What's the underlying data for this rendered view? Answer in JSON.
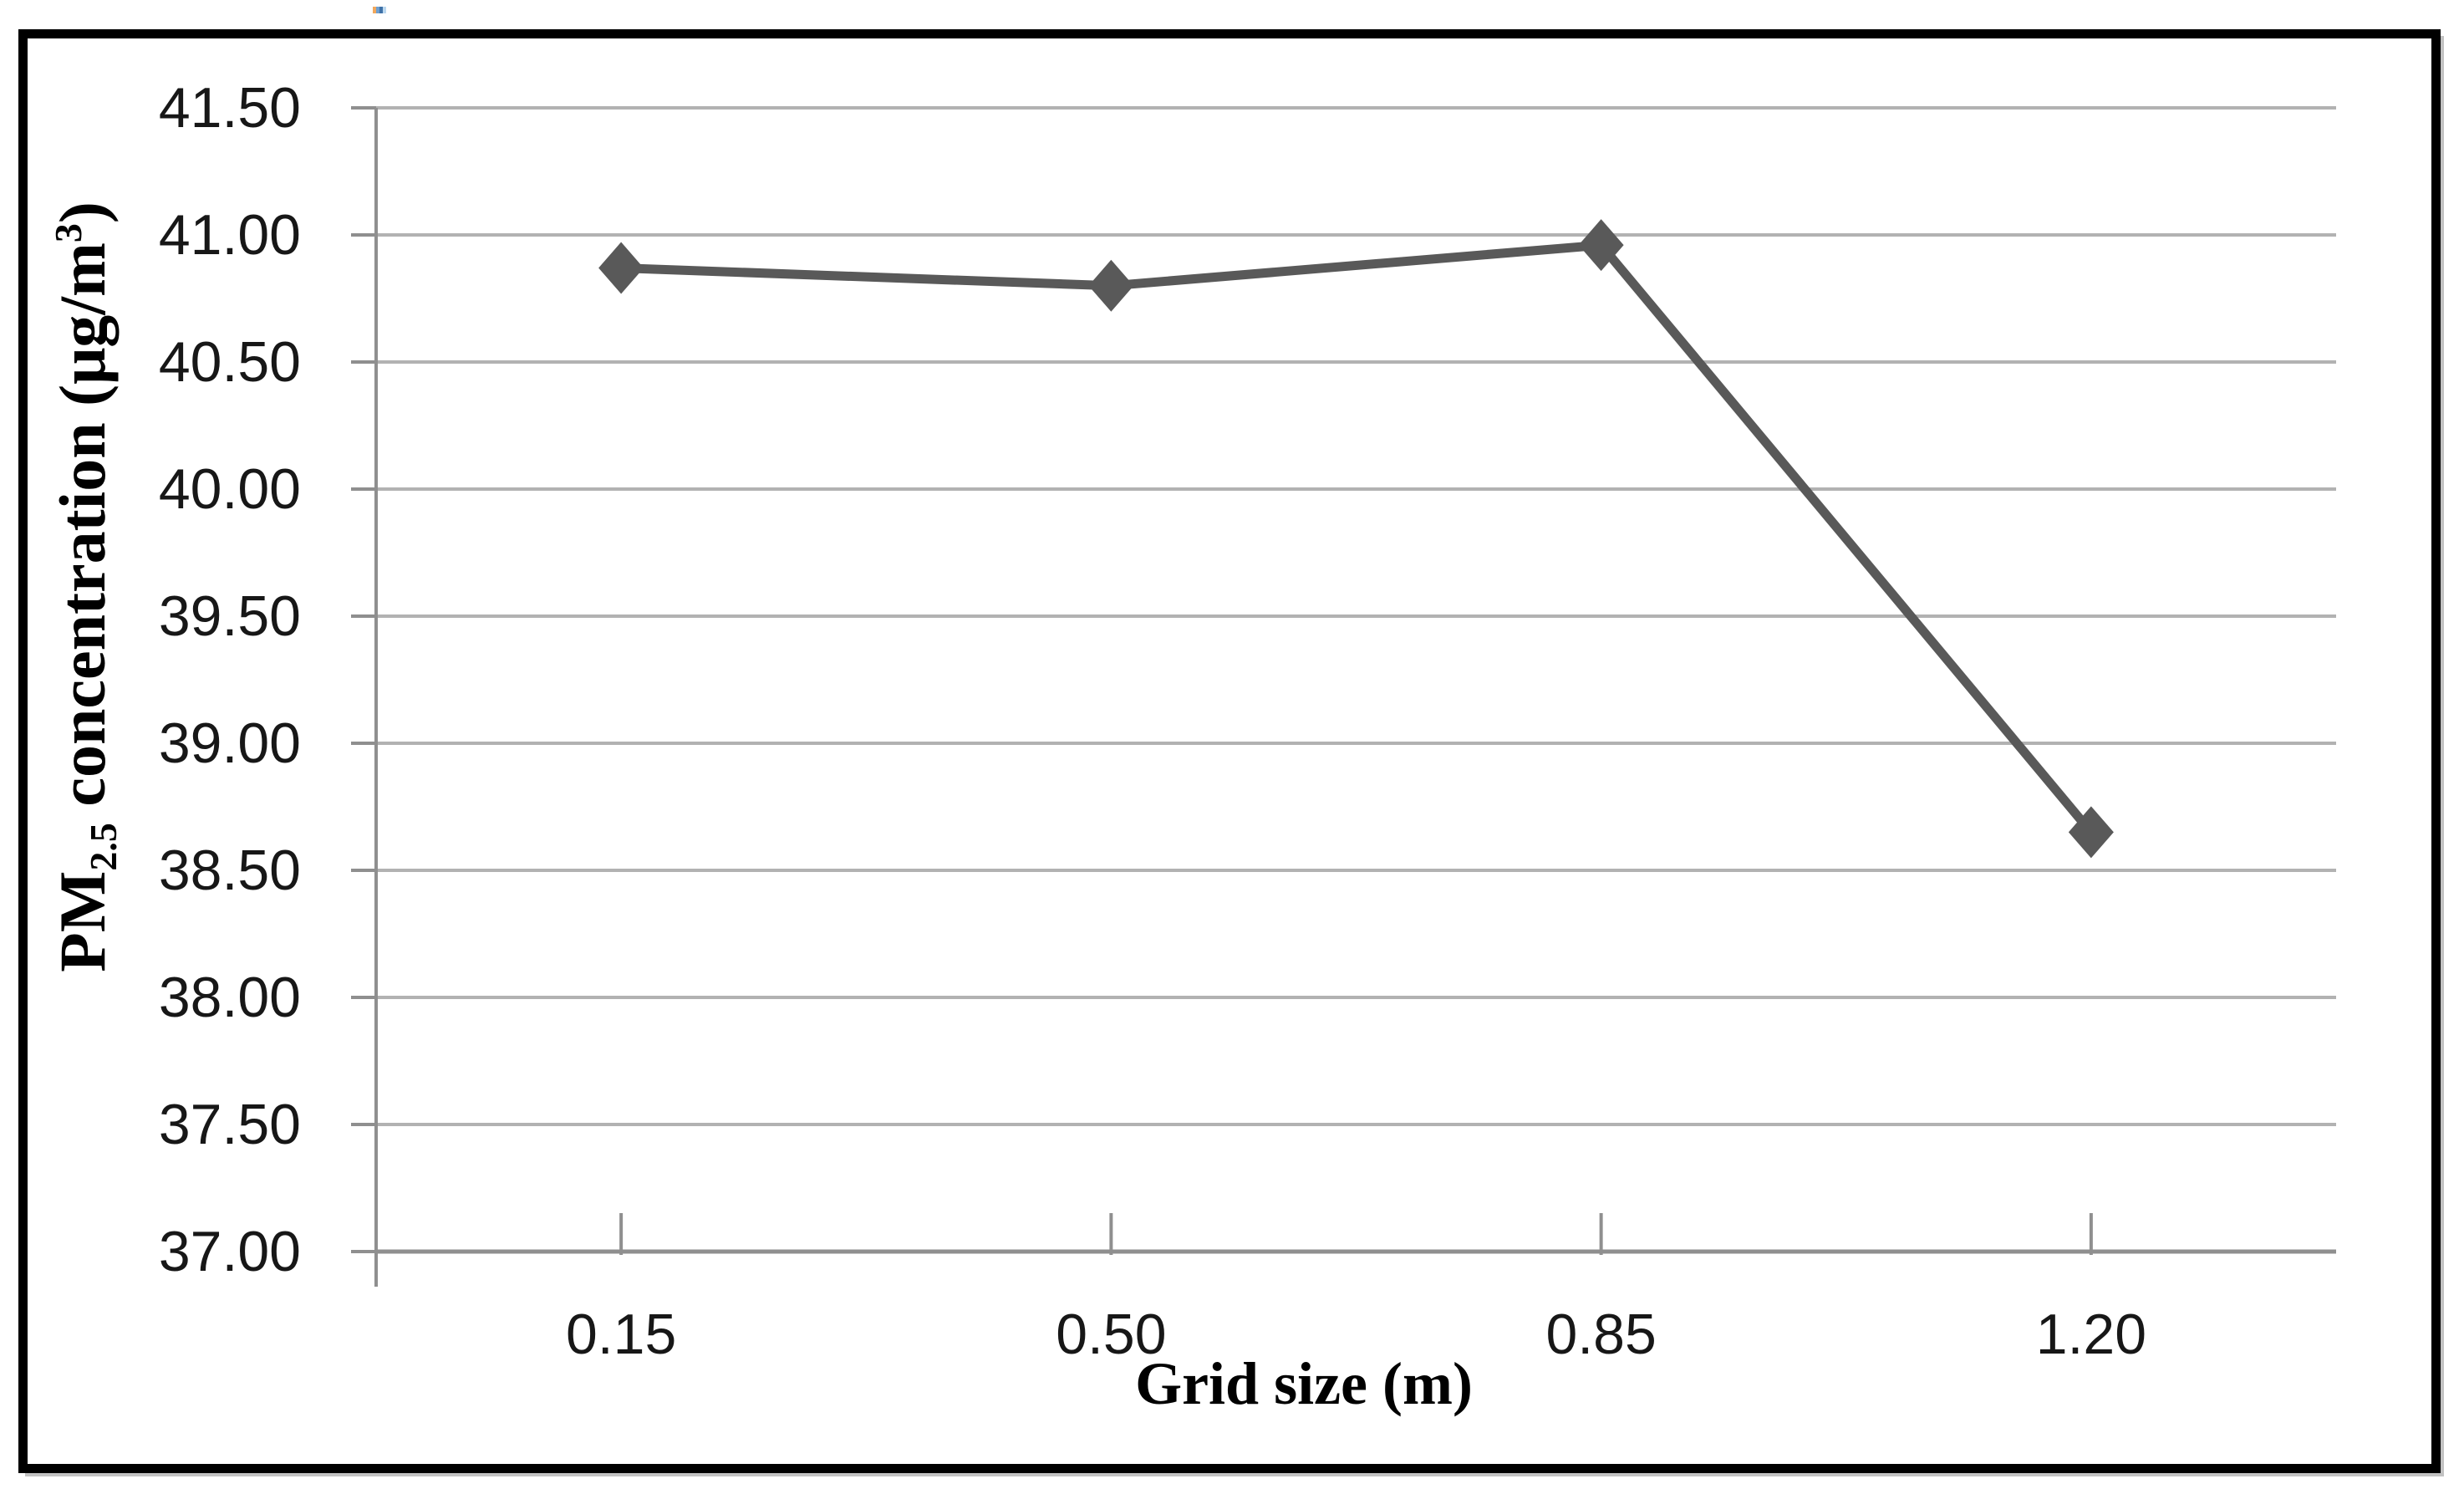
{
  "frame": {
    "border_color": "#000000",
    "shadow_color": "#c2c2c2"
  },
  "artifact": {
    "colors": [
      "#f2a85c",
      "#6f9fd0",
      "#3f72a8",
      "#bcd8ef"
    ]
  },
  "chart_data": {
    "type": "line",
    "title": "",
    "categories": [
      "0.15",
      "0.50",
      "0.85",
      "1.20"
    ],
    "series": [
      {
        "name": "PM2.5 concentration",
        "values": [
          40.87,
          40.8,
          40.96,
          38.65
        ]
      }
    ],
    "xlabel": "Grid size (m)",
    "ylabel": "PM2.5 concentration (μg/m³)",
    "ylabel_parts": {
      "prefix": "PM",
      "sub": "2.5",
      "mid": " concentration (μg/m",
      "sup": "3",
      "suffix": ")"
    },
    "ylim": [
      37.0,
      41.5
    ],
    "ytick_step": 0.5,
    "yticks": [
      "41.50",
      "41.00",
      "40.50",
      "40.00",
      "39.50",
      "39.00",
      "38.50",
      "38.00",
      "37.50",
      "37.00"
    ],
    "xticks": [
      "0.15",
      "0.50",
      "0.85",
      "1.20"
    ],
    "grid": true,
    "legend": "none",
    "marker": "diamond",
    "line_color": "#595959",
    "marker_color": "#595959",
    "gridline_color": "#b2b2b2",
    "axis_color": "#8f8f8f",
    "tick_label_color": "#171717"
  }
}
